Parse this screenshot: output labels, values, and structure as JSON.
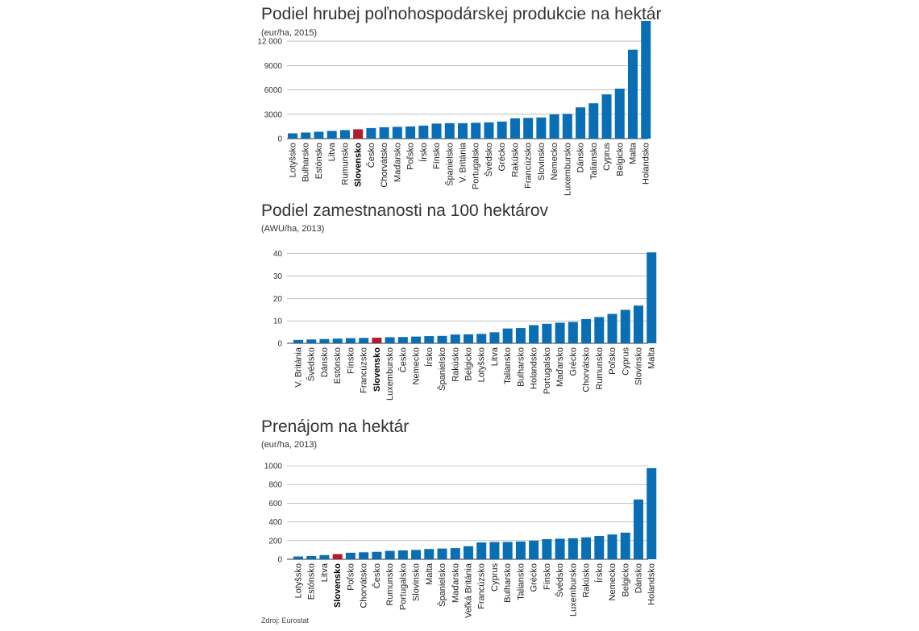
{
  "source": "Zdroj: Eurostat",
  "colors": {
    "bar": "#0a6eb4",
    "highlight": "#b01c2e",
    "grid": "#9a9a9a",
    "axis": "#333333"
  },
  "chart_data": [
    {
      "type": "bar",
      "title": "Podiel hrubej poľnohospodárskej produkcie na hektár",
      "unit": "(eur/ha, 2015)",
      "xlabel": "",
      "ylabel": "",
      "ylim": [
        0,
        13500
      ],
      "yticks": [
        0,
        3000,
        6000,
        9000,
        12000
      ],
      "ytick_labels": [
        "0",
        "3000",
        "6000",
        "9000",
        "12 000"
      ],
      "grid": true,
      "highlight": "Slovensko",
      "categories": [
        "Lotyšsko",
        "Bulharsko",
        "Estónsko",
        "Litva",
        "Rumunsko",
        "Slovensko",
        "Česko",
        "Chorvátsko",
        "Maďarsko",
        "Poľsko",
        "Írsko",
        "Fínsko",
        "Španielsko",
        "V. Británia",
        "Portugalsko",
        "Švédsko",
        "Grécko",
        "Rakúsko",
        "Francúzsko",
        "Slovinsko",
        "Nemecko",
        "Luxembursko",
        "Dánsko",
        "Taliansko",
        "Cyprus",
        "Belgicko",
        "Malta",
        "Holandsko"
      ],
      "values": [
        650,
        750,
        850,
        950,
        1050,
        1150,
        1300,
        1400,
        1450,
        1500,
        1600,
        1850,
        1900,
        1900,
        1950,
        2000,
        2100,
        2500,
        2550,
        2600,
        3000,
        3050,
        3850,
        4350,
        5450,
        6150,
        10950,
        14500
      ]
    },
    {
      "type": "bar",
      "title": "Podiel zamestnanosti na 100 hektárov",
      "unit": "(AWU/ha, 2013)",
      "xlabel": "",
      "ylabel": "",
      "ylim": [
        0,
        42
      ],
      "yticks": [
        0,
        10,
        20,
        30,
        40
      ],
      "ytick_labels": [
        "0",
        "10",
        "20",
        "30",
        "40"
      ],
      "grid": true,
      "highlight": "Slovensko",
      "categories": [
        "V. Británia",
        "Švédsko",
        "Dánsko",
        "Estónsko",
        "Fínsko",
        "Francúzsko",
        "Slovensko",
        "Luxembursko",
        "Česko",
        "Nemecko",
        "Írsko",
        "Španielsko",
        "Rakúsko",
        "Belgicko",
        "Lotyšsko",
        "Litva",
        "Taliansko",
        "Bulharsko",
        "Holandsko",
        "Portugalsko",
        "Maďarsko",
        "Grécko",
        "Chorvátsko",
        "Rumunsko",
        "Poľsko",
        "Cyprus",
        "Slovinsko",
        "Malta"
      ],
      "values": [
        1.5,
        1.7,
        1.9,
        2.1,
        2.3,
        2.4,
        2.5,
        2.7,
        2.8,
        3.0,
        3.2,
        3.3,
        3.9,
        4.0,
        4.2,
        4.9,
        6.6,
        6.8,
        8.1,
        8.7,
        9.2,
        9.5,
        10.8,
        11.7,
        13.1,
        14.9,
        16.8,
        40.5
      ]
    },
    {
      "type": "bar",
      "title": "Prenájom na hektár",
      "unit": "(eur/ha, 2013)",
      "xlabel": "",
      "ylabel": "",
      "ylim": [
        0,
        1000
      ],
      "yticks": [
        0,
        200,
        400,
        600,
        800,
        1000
      ],
      "ytick_labels": [
        "0",
        "200",
        "400",
        "600",
        "800",
        "1000"
      ],
      "grid": true,
      "highlight": "Slovensko",
      "categories": [
        "Lotyšsko",
        "Estónsko",
        "Litva",
        "Slovensko",
        "Poľsko",
        "Chorvátsko",
        "Česko",
        "Rumunsko",
        "Portugalsko",
        "Slovinsko",
        "Malta",
        "Španielsko",
        "Maďarsko",
        "Veľká Británia",
        "Francúzsko",
        "Cyprus",
        "Bulharsko",
        "Taliansko",
        "Grécko",
        "Fínsko",
        "Švédsko",
        "Luxembursko",
        "Rakúsko",
        "Írsko",
        "Nemecko",
        "Belgicko",
        "Dánsko",
        "Holandsko"
      ],
      "values": [
        30,
        35,
        45,
        55,
        70,
        75,
        80,
        90,
        95,
        100,
        110,
        115,
        120,
        140,
        180,
        185,
        185,
        190,
        200,
        215,
        220,
        225,
        235,
        250,
        265,
        285,
        640,
        975
      ]
    }
  ]
}
